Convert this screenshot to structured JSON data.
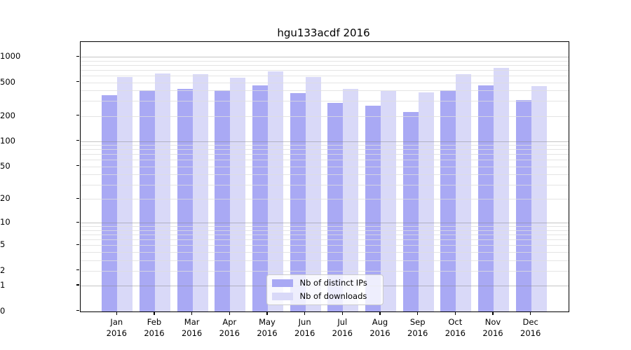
{
  "chart_data": {
    "type": "bar",
    "title": "hgu133acdf 2016",
    "categories": [
      "Jan",
      "Feb",
      "Mar",
      "Apr",
      "May",
      "Jun",
      "Jul",
      "Aug",
      "Sep",
      "Oct",
      "Nov",
      "Dec"
    ],
    "year": "2016",
    "series": [
      {
        "name": "Nb of distinct IPs",
        "color": "#a9a9f4",
        "values": [
          350,
          400,
          420,
          400,
          465,
          370,
          285,
          265,
          225,
          405,
          465,
          310
        ]
      },
      {
        "name": "Nb of downloads",
        "color": "#d9d9f8",
        "values": [
          580,
          640,
          630,
          570,
          675,
          580,
          420,
          395,
          380,
          620,
          745,
          450
        ]
      }
    ],
    "yscale": "log1p",
    "ylim": [
      0,
      1500
    ],
    "ytick_values": [
      0,
      1,
      2,
      5,
      10,
      20,
      50,
      100,
      200,
      500,
      1000
    ],
    "ytick_labels": [
      "0",
      "1",
      "2",
      "5",
      "10",
      "20",
      "50",
      "100",
      "200",
      "500",
      "1000"
    ],
    "major_gridlines": [
      1,
      10,
      100,
      1000
    ],
    "minor_gridlines": [
      2,
      3,
      4,
      5,
      6,
      7,
      8,
      9,
      20,
      30,
      40,
      50,
      60,
      70,
      80,
      90,
      200,
      300,
      400,
      500,
      600,
      700,
      800,
      900
    ],
    "grid": true,
    "legend_position": "lower center"
  }
}
